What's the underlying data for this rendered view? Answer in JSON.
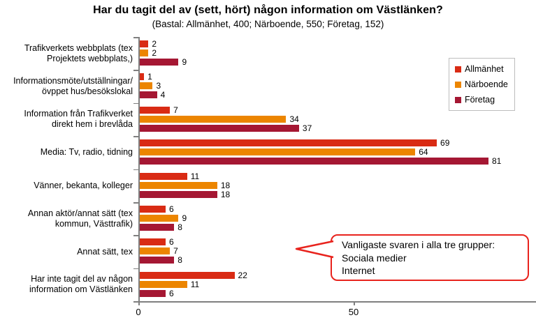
{
  "chart": {
    "title": "Har du tagit del av (sett, hört) någon information om Västlänken?",
    "subtitle": "(Bastal: Allmänhet, 400; Närboende, 550; Företag, 152)"
  },
  "chart_data": {
    "type": "bar",
    "orientation": "horizontal",
    "title": "Har du tagit del av (sett, hört) någon information om Västlänken?",
    "subtitle": "(Bastal: Allmänhet, 400; Närboende, 550; Företag, 152)",
    "categories": [
      "Trafikverkets webbplats (tex\nProjektets webbplats,)",
      "Informationsmöte/utställningar/\növppet hus/besökslokal",
      "Information från Trafikverket\ndirekt hem i brevlåda",
      "Media: Tv, radio, tidning",
      "Vänner, bekanta, kolleger",
      "Annan aktör/annat sätt (tex\nkommun, Västtrafik)",
      "Annat sätt, tex",
      "Har inte tagit del av någon\ninformation om Västlänken"
    ],
    "series": [
      {
        "name": "Allmänhet",
        "color": "#d92b14",
        "values": [
          2,
          1,
          7,
          69,
          11,
          6,
          6,
          22
        ]
      },
      {
        "name": "Närboende",
        "color": "#ec8500",
        "values": [
          2,
          3,
          34,
          64,
          18,
          9,
          7,
          11
        ]
      },
      {
        "name": "Företag",
        "color": "#a51733",
        "values": [
          9,
          4,
          37,
          81,
          18,
          8,
          8,
          6
        ]
      }
    ],
    "x_ticks": [
      0,
      50
    ],
    "xlim": [
      0,
      92
    ],
    "grid": false,
    "legend_position": "top-right",
    "annotation": {
      "lines": [
        "Vanligaste svaren i alla tre grupper:",
        "Sociala medier",
        "Internet"
      ],
      "border_color": "#e8231d"
    },
    "axis_color": "#7f7f7f"
  }
}
